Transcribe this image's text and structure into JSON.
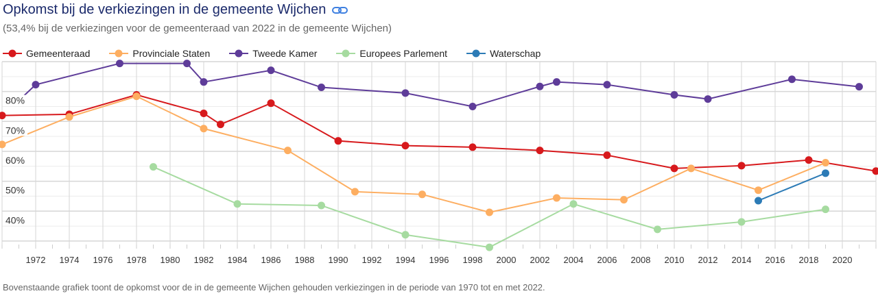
{
  "header": {
    "title": "Opkomst bij de verkiezingen in de gemeente Wijchen",
    "subtitle": "(53,4% bij de verkiezingen voor de gemeenteraad van 2022 in de gemeente Wijchen)",
    "link_icon": "link-icon"
  },
  "footer": {
    "text": "Bovenstaande grafiek toont de opkomst voor de in de gemeente Wijchen gehouden verkiezingen in de periode van 1970 tot en met 2022."
  },
  "chart_data": {
    "type": "line",
    "legend_position": "top-left",
    "grid": true,
    "xlim": [
      1970,
      2022
    ],
    "ylim": [
      27,
      90
    ],
    "x_ticks": [
      "1972",
      "1974",
      "1976",
      "1978",
      "1980",
      "1982",
      "1984",
      "1986",
      "1988",
      "1990",
      "1992",
      "1994",
      "1996",
      "1998",
      "2000",
      "2002",
      "2004",
      "2006",
      "2008",
      "2010",
      "2012",
      "2014",
      "2016",
      "2018",
      "2020"
    ],
    "y_ticks": [
      "40%",
      "50%",
      "60%",
      "70%",
      "80%"
    ],
    "series": [
      {
        "name": "Gemeenteraad",
        "color": "#d7191c",
        "points": [
          [
            1970,
            72
          ],
          [
            1974,
            72.4
          ],
          [
            1978,
            78.9
          ],
          [
            1982,
            72.7
          ],
          [
            1983,
            69
          ],
          [
            1986,
            76.1
          ],
          [
            1990,
            63.5
          ],
          [
            1994,
            61.9
          ],
          [
            1998,
            61.4
          ],
          [
            2002,
            60.3
          ],
          [
            2006,
            58.7
          ],
          [
            2010,
            54.3
          ],
          [
            2014,
            55.2
          ],
          [
            2018,
            57.1
          ],
          [
            2022,
            53.4
          ]
        ]
      },
      {
        "name": "Provinciale Staten",
        "color": "#fdae61",
        "points": [
          [
            1970,
            62.3
          ],
          [
            1974,
            71.5
          ],
          [
            1978,
            78.4
          ],
          [
            1982,
            67.6
          ],
          [
            1987,
            60.3
          ],
          [
            1991,
            46.5
          ],
          [
            1995,
            45.6
          ],
          [
            1999,
            39.6
          ],
          [
            2003,
            44.4
          ],
          [
            2007,
            43.8
          ],
          [
            2011,
            54.3
          ],
          [
            2015,
            47
          ],
          [
            2019,
            56.2
          ]
        ]
      },
      {
        "name": "Tweede Kamer",
        "color": "#5e3c99",
        "points": [
          [
            1971,
            77
          ],
          [
            1972,
            82.3
          ],
          [
            1977,
            89.4
          ],
          [
            1981,
            89.4
          ],
          [
            1982,
            83.2
          ],
          [
            1986,
            87.1
          ],
          [
            1989,
            81.4
          ],
          [
            1994,
            79.5
          ],
          [
            1998,
            75
          ],
          [
            2002,
            81.7
          ],
          [
            2003,
            83.2
          ],
          [
            2006,
            82.3
          ],
          [
            2010,
            78.9
          ],
          [
            2012,
            77.5
          ],
          [
            2017,
            84.1
          ],
          [
            2021,
            81.6
          ]
        ]
      },
      {
        "name": "Europees Parlement",
        "color": "#a6dba0",
        "points": [
          [
            1979,
            54.8
          ],
          [
            1984,
            42.4
          ],
          [
            1989,
            41.9
          ],
          [
            1994,
            32.1
          ],
          [
            1999,
            27.9
          ],
          [
            2004,
            42.4
          ],
          [
            2009,
            33.9
          ],
          [
            2014,
            36.4
          ],
          [
            2019,
            40.6
          ]
        ]
      },
      {
        "name": "Waterschap",
        "color": "#2c7bb6",
        "points": [
          [
            2015,
            43.5
          ],
          [
            2019,
            52.7
          ]
        ]
      }
    ]
  }
}
